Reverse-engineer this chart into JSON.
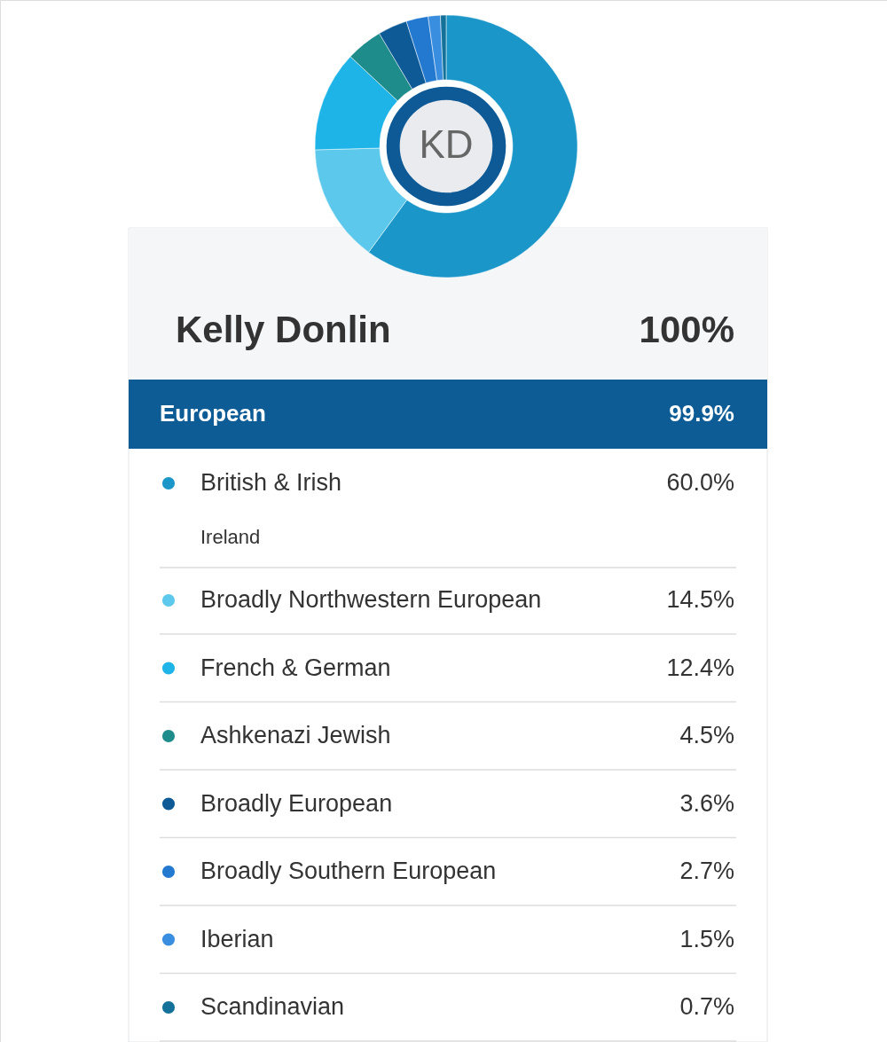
{
  "chart_data": {
    "type": "donut",
    "title": "Kelly Donlin",
    "categories": [
      "British & Irish",
      "Broadly Northwestern European",
      "French & German",
      "Ashkenazi Jewish",
      "Broadly European",
      "Broadly Southern European",
      "Iberian",
      "Scandinavian"
    ],
    "values": [
      60.0,
      14.5,
      12.4,
      4.5,
      3.6,
      2.7,
      1.5,
      0.7
    ],
    "value_labels": [
      "60.0%",
      "14.5%",
      "12.4%",
      "4.5%",
      "3.6%",
      "2.7%",
      "1.5%",
      "0.7%"
    ],
    "colors": [
      "#1a96c8",
      "#5bc8ec",
      "#1eb4e8",
      "#1e8c8a",
      "#0e5a96",
      "#2379d0",
      "#3a8ee0",
      "#13719a"
    ],
    "legend": "bottom",
    "annotations": [
      "KD",
      "100%",
      "European",
      "99.9%",
      "Ireland"
    ]
  }
}
